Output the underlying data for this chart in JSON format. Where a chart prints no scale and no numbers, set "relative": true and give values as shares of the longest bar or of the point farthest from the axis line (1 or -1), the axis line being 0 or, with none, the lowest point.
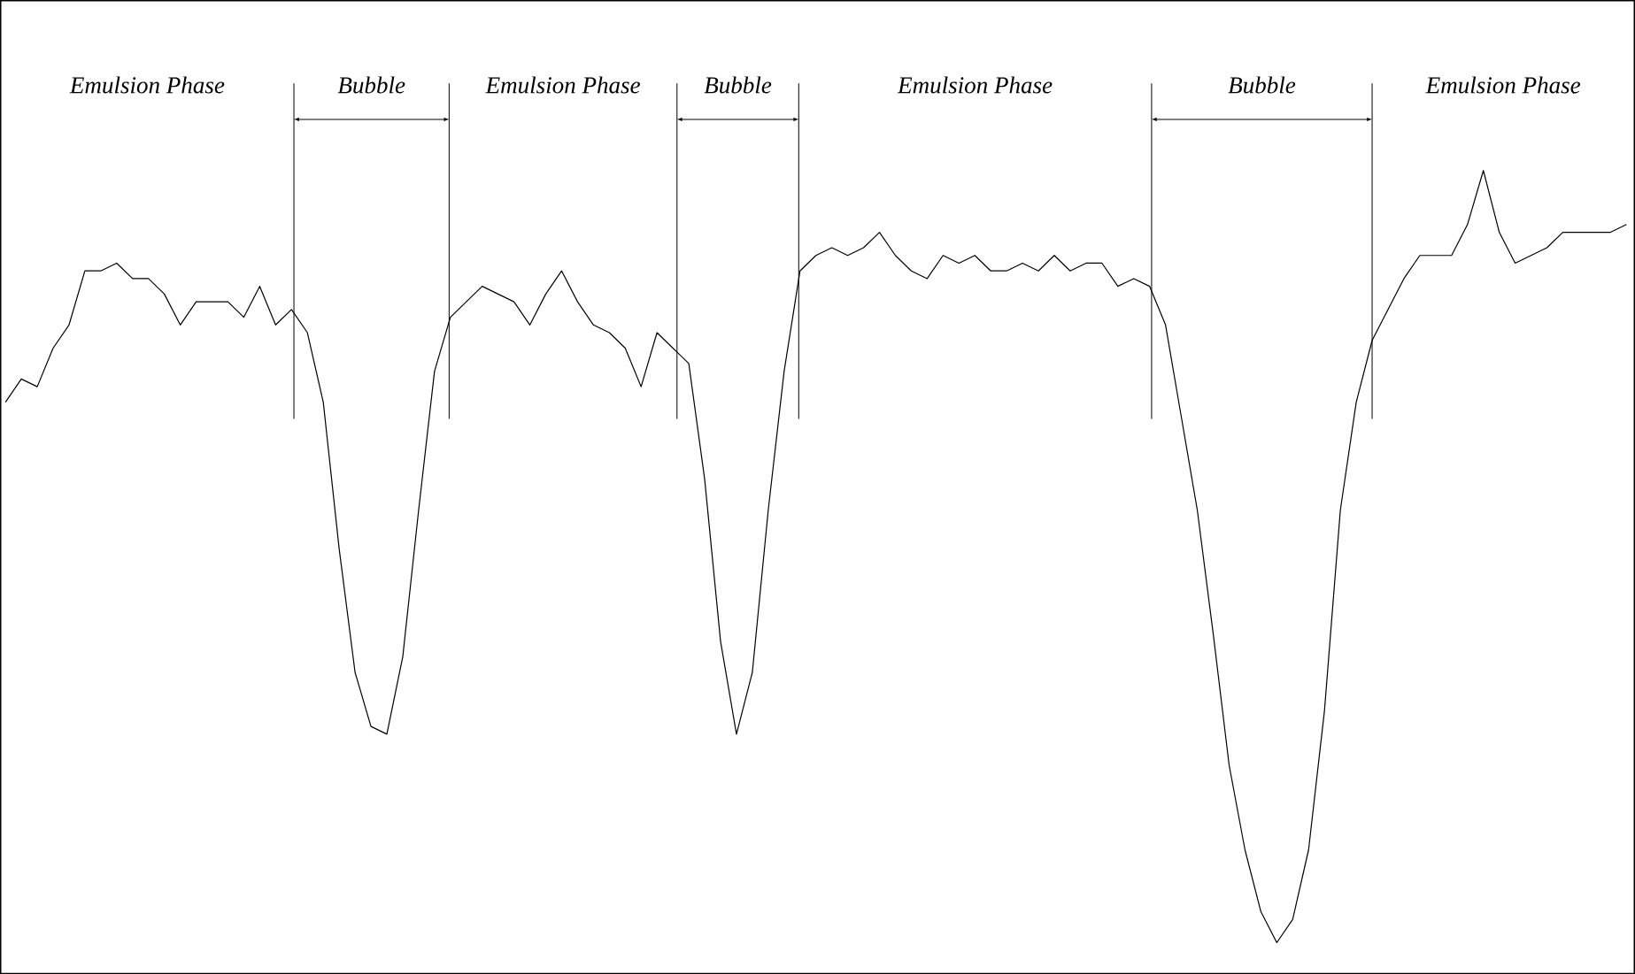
{
  "chart_data": {
    "type": "line",
    "relative": true,
    "color": "#000000",
    "categories": [
      null,
      null,
      null,
      null,
      null,
      null,
      null,
      null,
      null,
      null,
      null,
      null,
      null,
      null,
      null,
      null,
      null,
      null,
      null,
      null,
      null,
      null,
      null,
      null,
      null,
      null,
      null,
      null,
      null,
      null,
      null,
      null,
      null,
      null,
      null,
      null,
      null,
      null,
      null,
      null,
      null,
      null,
      null,
      null,
      null,
      null,
      null,
      null,
      null,
      null,
      null,
      null,
      null,
      null,
      null,
      null,
      null,
      null,
      null,
      null,
      null,
      null,
      null,
      null,
      null,
      null,
      null,
      null,
      null,
      null,
      null,
      null,
      null,
      null,
      null,
      null,
      null,
      null,
      null,
      null,
      null,
      null,
      null,
      null,
      null,
      null,
      null,
      null,
      null,
      null,
      null,
      null,
      null,
      null,
      null,
      null,
      null,
      null,
      null,
      null,
      null,
      null,
      null
    ],
    "values": [
      0.7,
      0.73,
      0.72,
      0.77,
      0.8,
      0.87,
      0.87,
      0.88,
      0.86,
      0.86,
      0.84,
      0.8,
      0.83,
      0.83,
      0.83,
      0.81,
      0.85,
      0.8,
      0.82,
      0.79,
      0.7,
      0.51,
      0.35,
      0.28,
      0.27,
      0.37,
      0.56,
      0.74,
      0.81,
      0.83,
      0.85,
      0.84,
      0.83,
      0.8,
      0.84,
      0.87,
      0.83,
      0.8,
      0.79,
      0.77,
      0.72,
      0.79,
      0.77,
      0.75,
      0.6,
      0.39,
      0.27,
      0.35,
      0.56,
      0.74,
      0.87,
      0.89,
      0.9,
      0.89,
      0.9,
      0.92,
      0.89,
      0.87,
      0.86,
      0.89,
      0.88,
      0.89,
      0.87,
      0.87,
      0.88,
      0.87,
      0.89,
      0.87,
      0.88,
      0.88,
      0.85,
      0.86,
      0.85,
      0.8,
      0.68,
      0.56,
      0.4,
      0.23,
      0.12,
      0.04,
      0,
      0.03,
      0.12,
      0.3,
      0.56,
      0.7,
      0.78,
      0.82,
      0.86,
      0.89,
      0.89,
      0.89,
      0.93,
      1,
      0.92,
      0.88,
      0.89,
      0.9,
      0.92,
      0.92,
      0.92,
      0.92,
      0.93
    ],
    "annotations": [
      "Emulsion Phase",
      "Bubble",
      "Emulsion Phase",
      "Bubble",
      "Emulsion Phase",
      "Bubble",
      "Emulsion Phase"
    ]
  }
}
